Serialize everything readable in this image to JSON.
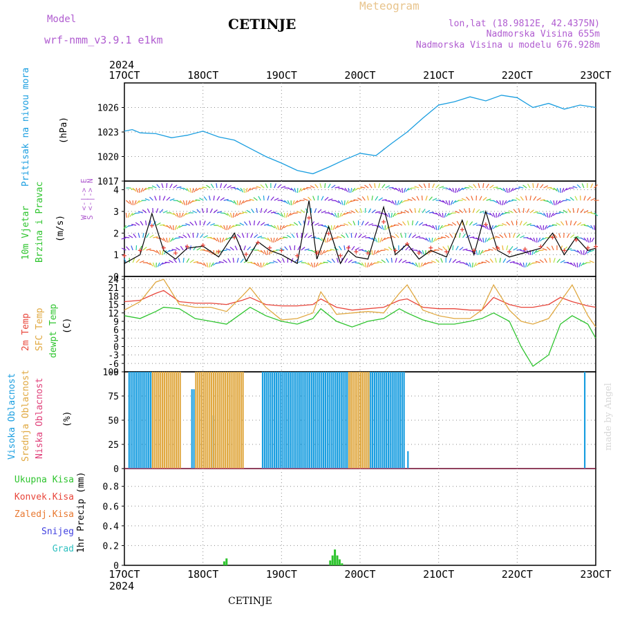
{
  "header": {
    "model_label": "Model",
    "model_name": "wrf-nmm_v3.9.1 e1km",
    "station": "CETINJE",
    "product": "Meteogram",
    "lonlat": "lon,lat (18.9812E, 42.4375N)",
    "elevation": "Nadmorska Visina 655m",
    "model_elevation": "Nadmorska Visina u modelu 676.928m",
    "footer_station": "CETINJE",
    "credit": "made by Angel"
  },
  "colors": {
    "pressure": "#1a9ee0",
    "temp2m": "#e8453a",
    "sfc_temp": "#e0a840",
    "dewpt": "#2ec42e",
    "cloud_high": "#1a9ee0",
    "cloud_mid": "#e0a840",
    "cloud_low": "#e0407a",
    "precip": "#2ec42e",
    "purple": "#b05cd0",
    "orange": "#e8c48c"
  },
  "chart_data": [
    {
      "type": "line",
      "panel": "pressure",
      "time_axis": {
        "ticks": [
          "17OCT",
          "18OCT",
          "19OCT",
          "20OCT",
          "21OCT",
          "22OCT",
          "23OCT"
        ],
        "year": "2024",
        "range_days": [
          17,
          23
        ]
      },
      "ylabel_left": "Pritisak na nivou mora",
      "ylabel_unit": "(hPa)",
      "yticks": [
        1017,
        1020,
        1023,
        1026
      ],
      "ylim": [
        1017,
        1029
      ],
      "x": [
        17.0,
        17.1,
        17.2,
        17.4,
        17.6,
        17.8,
        18.0,
        18.2,
        18.4,
        18.6,
        18.8,
        19.0,
        19.2,
        19.4,
        19.6,
        19.8,
        20.0,
        20.2,
        20.4,
        20.6,
        20.8,
        21.0,
        21.2,
        21.4,
        21.6,
        21.8,
        22.0,
        22.2,
        22.4,
        22.6,
        22.8,
        23.0
      ],
      "values": [
        1023.1,
        1023.3,
        1022.9,
        1022.8,
        1022.3,
        1022.6,
        1023.1,
        1022.4,
        1022.0,
        1021.0,
        1020.0,
        1019.2,
        1018.3,
        1017.9,
        1018.7,
        1019.6,
        1020.4,
        1020.1,
        1021.6,
        1023.0,
        1024.7,
        1026.3,
        1026.7,
        1027.3,
        1026.8,
        1027.5,
        1027.2,
        1026.0,
        1026.5,
        1025.8,
        1026.3,
        1026.0
      ]
    },
    {
      "type": "line",
      "panel": "wind",
      "ylabel_left": "10m Vjetar",
      "ylabel_left2": "Brzina i Pravac",
      "ylabel_unit": "(m/s)",
      "compass": "W <-|-> E",
      "compass2": "S <-|-> N",
      "yticks": [
        0,
        1,
        2,
        3,
        4
      ],
      "ylim": [
        0,
        4.4
      ],
      "x": [
        17.0,
        17.2,
        17.35,
        17.5,
        17.65,
        17.8,
        18.0,
        18.2,
        18.4,
        18.55,
        18.7,
        18.85,
        19.0,
        19.2,
        19.35,
        19.45,
        19.6,
        19.75,
        19.85,
        19.95,
        20.1,
        20.3,
        20.45,
        20.6,
        20.75,
        20.9,
        21.1,
        21.3,
        21.45,
        21.6,
        21.75,
        21.9,
        22.1,
        22.3,
        22.45,
        22.6,
        22.75,
        22.9,
        23.0
      ],
      "values": [
        0.6,
        1.0,
        2.9,
        1.2,
        0.8,
        1.3,
        1.4,
        0.9,
        2.0,
        0.7,
        1.6,
        1.2,
        1.0,
        0.6,
        3.5,
        0.8,
        2.3,
        0.6,
        1.2,
        0.9,
        0.8,
        3.2,
        1.0,
        1.5,
        0.8,
        1.2,
        0.9,
        2.6,
        1.0,
        3.0,
        1.2,
        0.9,
        1.1,
        1.3,
        2.0,
        1.0,
        1.8,
        1.2,
        1.3
      ]
    },
    {
      "type": "line",
      "panel": "temperature",
      "ylabel_left": "2m Temp",
      "ylabel_left2": "SFC Temp",
      "ylabel_left3": "dewpt Temp",
      "ylabel_unit": "(C)",
      "yticks": [
        -9,
        -6,
        -3,
        0,
        3,
        6,
        9,
        12,
        15,
        18,
        21,
        24
      ],
      "ylim": [
        -9,
        25
      ],
      "x": [
        17.0,
        17.2,
        17.4,
        17.5,
        17.7,
        17.9,
        18.1,
        18.3,
        18.5,
        18.6,
        18.8,
        19.0,
        19.2,
        19.4,
        19.5,
        19.7,
        19.9,
        20.1,
        20.3,
        20.5,
        20.6,
        20.8,
        21.0,
        21.2,
        21.4,
        21.55,
        21.7,
        21.9,
        22.05,
        22.2,
        22.4,
        22.55,
        22.7,
        22.9,
        23.0
      ],
      "series": [
        {
          "name": "2m Temp",
          "values": [
            16,
            16.5,
            19,
            20,
            16,
            15.5,
            15.5,
            15,
            16.5,
            17.5,
            15,
            14.5,
            14.5,
            15,
            17,
            14,
            13,
            13.5,
            14,
            16.5,
            17,
            14,
            13.5,
            13.5,
            13,
            13,
            17.5,
            15,
            14,
            14,
            15,
            17.5,
            16,
            14.5,
            14
          ]
        },
        {
          "name": "SFC Temp",
          "values": [
            13,
            16,
            23,
            24,
            15,
            14,
            14,
            12.5,
            18,
            21,
            14,
            9.5,
            10,
            12,
            19.5,
            11.5,
            12,
            12.5,
            12,
            19,
            22,
            13,
            11,
            10,
            10,
            13,
            22,
            13,
            9,
            8,
            10,
            16,
            22,
            11,
            7
          ]
        },
        {
          "name": "dewpt Temp",
          "values": [
            11,
            10,
            12.5,
            14,
            13.5,
            10,
            9,
            8,
            12,
            14,
            11,
            9,
            8,
            10,
            13.5,
            9,
            7,
            9,
            10,
            13.5,
            12,
            9.5,
            8,
            8,
            9,
            10,
            12,
            9,
            0,
            -7,
            -3,
            8,
            11,
            8,
            3
          ]
        }
      ]
    },
    {
      "type": "bar",
      "panel": "cloud_cover",
      "ylabel_left": "Visoka Oblacnost",
      "ylabel_left2": "Srednja Oblacnost",
      "ylabel_left3": "Niska Oblacnost",
      "ylabel_unit": "(%)",
      "yticks": [
        0,
        25,
        50,
        75,
        100
      ],
      "ylim": [
        0,
        100
      ],
      "series": [
        {
          "name": "Visoka Oblacnost",
          "segments": [
            {
              "from": 17.05,
              "to": 17.35,
              "value": 100
            },
            {
              "from": 17.85,
              "to": 17.9,
              "value": 82
            },
            {
              "from": 18.1,
              "to": 18.15,
              "value": 55
            },
            {
              "from": 18.75,
              "to": 19.85,
              "value": 100
            },
            {
              "from": 20.1,
              "to": 20.55,
              "value": 100
            },
            {
              "from": 20.6,
              "to": 20.62,
              "value": 18
            },
            {
              "from": 22.85,
              "to": 22.87,
              "value": 100
            }
          ]
        },
        {
          "name": "Srednja Oblacnost",
          "segments": [
            {
              "from": 17.35,
              "to": 17.7,
              "value": 100
            },
            {
              "from": 17.9,
              "to": 18.5,
              "value": 100
            },
            {
              "from": 19.85,
              "to": 20.1,
              "value": 100
            }
          ]
        },
        {
          "name": "Niska Oblacnost",
          "segments": [
            {
              "from": 17.0,
              "to": 23.0,
              "value": 0
            }
          ]
        }
      ]
    },
    {
      "type": "bar",
      "panel": "precip",
      "legend": [
        "Ukupna Kisa",
        "Konvek.Kisa",
        "Zaledj.Kisa",
        "Snijeg",
        "Grad"
      ],
      "ylabel_unit": "1hr Precip (mm)",
      "yticks": [
        0,
        0.2,
        0.4,
        0.6,
        0.8
      ],
      "ylim": [
        0,
        0.98
      ],
      "series": [
        {
          "name": "Ukupna Kisa",
          "x": [
            18.27,
            18.3,
            19.62,
            19.65,
            19.68,
            19.71,
            19.74,
            19.77
          ],
          "values": [
            0.04,
            0.07,
            0.05,
            0.1,
            0.16,
            0.1,
            0.06,
            0.02
          ]
        }
      ]
    }
  ]
}
